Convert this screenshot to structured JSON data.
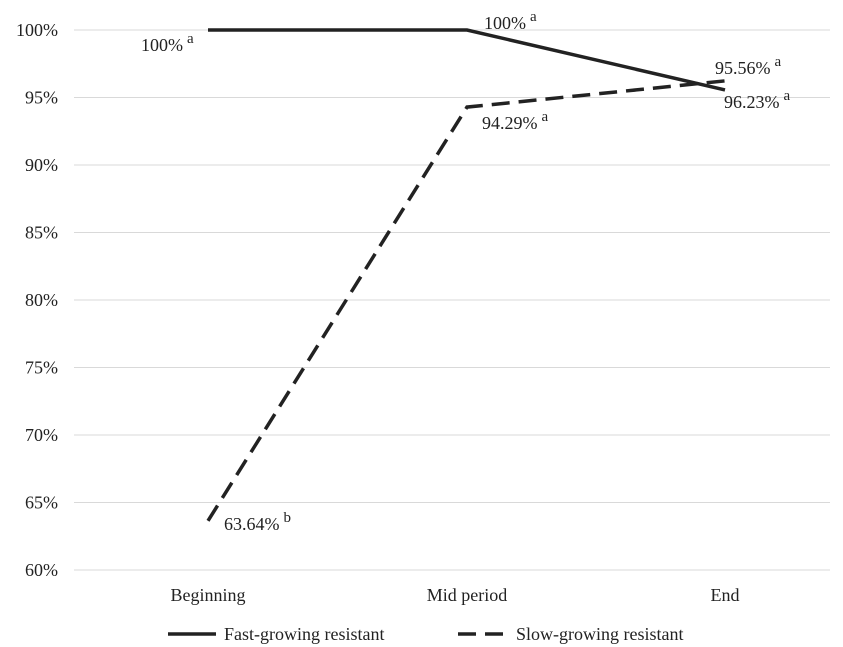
{
  "chart_data": {
    "type": "line",
    "categories": [
      "Beginning",
      "Mid period",
      "End"
    ],
    "ylim": [
      0.6,
      1.0
    ],
    "yticks": [
      "60%",
      "65%",
      "70%",
      "75%",
      "80%",
      "85%",
      "90%",
      "95%",
      "100%"
    ],
    "grid": true,
    "legend_position": "bottom",
    "series": [
      {
        "name": "Fast-growing resistant",
        "style": "solid",
        "values": [
          1.0,
          1.0,
          0.9556
        ],
        "labels": [
          {
            "text": "100%",
            "sup": "a"
          },
          {
            "text": "100%",
            "sup": "a"
          },
          {
            "text": "95.56%",
            "sup": "a"
          }
        ]
      },
      {
        "name": "Slow-growing resistant",
        "style": "dashed",
        "values": [
          0.6364,
          0.9429,
          0.9623
        ],
        "labels": [
          {
            "text": "63.64%",
            "sup": "b"
          },
          {
            "text": "94.29%",
            "sup": "a"
          },
          {
            "text": "96.23%",
            "sup": "a"
          }
        ]
      }
    ],
    "colors": {
      "line": "#222222",
      "grid": "#d9d9d9",
      "text": "#222222"
    }
  }
}
